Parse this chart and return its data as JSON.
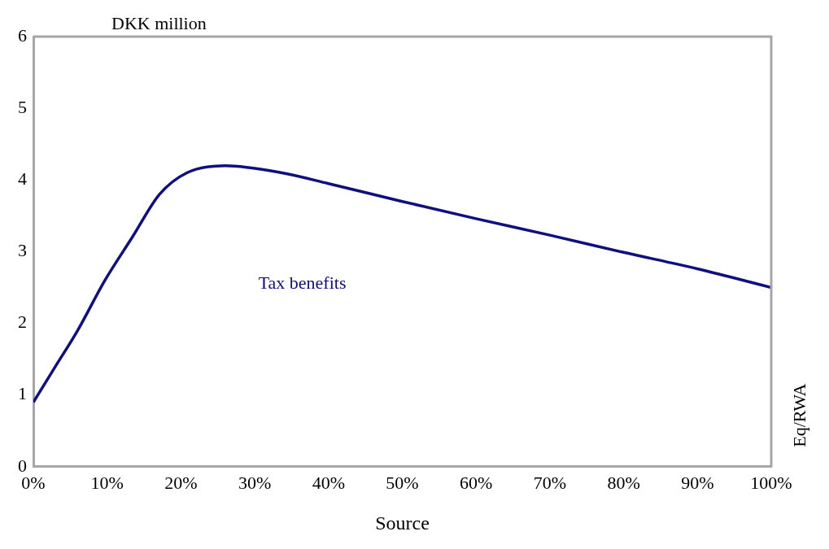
{
  "chart_data": {
    "type": "line",
    "ylabel": "DKK million",
    "xlabel": "Source",
    "annotations": [
      "Eq/RWA"
    ],
    "x": [
      0,
      3,
      6,
      9.7,
      13.4,
      17.1,
      20.8,
      26,
      33.7,
      40,
      50,
      60,
      70,
      80,
      90,
      100
    ],
    "series": [
      {
        "name": "Tax benefits",
        "color": "#0f0f80",
        "values": [
          0.9,
          1.4,
          1.9,
          2.6,
          3.2,
          3.8,
          4.1,
          4.2,
          4.1,
          3.95,
          3.7,
          3.46,
          3.23,
          2.99,
          2.76,
          2.5
        ]
      }
    ],
    "xlim": [
      0,
      100
    ],
    "xticks": [
      {
        "value": 0,
        "label": "0%"
      },
      {
        "value": 10,
        "label": "10%"
      },
      {
        "value": 20,
        "label": "20%"
      },
      {
        "value": 30,
        "label": "30%"
      },
      {
        "value": 40,
        "label": "40%"
      },
      {
        "value": 50,
        "label": "50%"
      },
      {
        "value": 60,
        "label": "60%"
      },
      {
        "value": 70,
        "label": "70%"
      },
      {
        "value": 80,
        "label": "80%"
      },
      {
        "value": 90,
        "label": "90%"
      },
      {
        "value": 100,
        "label": "100%"
      }
    ],
    "ylim": [
      0,
      6
    ],
    "yticks": [
      0,
      1,
      2,
      3,
      4,
      5,
      6
    ],
    "grid": false,
    "legend": false,
    "marker": "none",
    "line_style": "solid"
  }
}
